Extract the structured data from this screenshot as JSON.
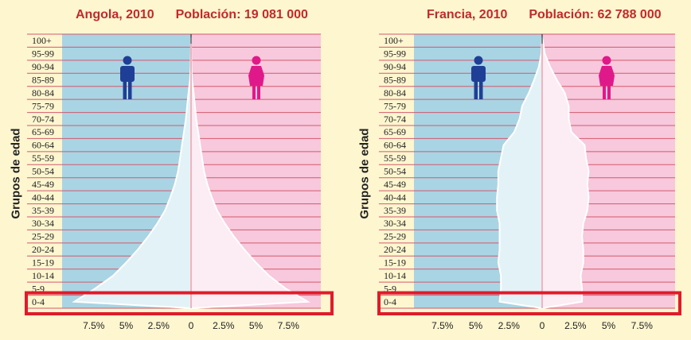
{
  "colors": {
    "male_bg": "#a9d4e3",
    "female_bg": "#f8c8dc",
    "band_line": "#d25a6f",
    "highlight": "#e01b2a",
    "male_icon": "#1f3f96",
    "female_icon": "#e0198a",
    "title": "#c22a2a"
  },
  "chart_data": [
    {
      "type": "population-pyramid",
      "title": "Angola, 2010",
      "population_label": "Población: 19 081 000",
      "ylabel": "Grupos de edad",
      "age_groups": [
        "0-4",
        "5-9",
        "10-14",
        "15-19",
        "20-24",
        "25-29",
        "30-34",
        "35-39",
        "40-44",
        "45-49",
        "50-54",
        "55-59",
        "60-64",
        "65-69",
        "70-74",
        "75-79",
        "80-84",
        "85-89",
        "90-94",
        "95-99",
        "100+"
      ],
      "x_ticks": [
        "7.5%",
        "5%",
        "2.5%",
        "0",
        "2.5%",
        "5%",
        "7.5%"
      ],
      "xlim": [
        -10,
        10
      ],
      "series": [
        {
          "name": "Hombres",
          "values": [
            9.0,
            7.4,
            6.0,
            5.0,
            4.1,
            3.3,
            2.6,
            2.0,
            1.6,
            1.25,
            1.0,
            0.85,
            0.7,
            0.55,
            0.4,
            0.3,
            0.2,
            0.08,
            0.03,
            0.01,
            0.0
          ]
        },
        {
          "name": "Mujeres",
          "values": [
            9.0,
            7.3,
            6.0,
            5.0,
            4.1,
            3.3,
            2.6,
            2.0,
            1.6,
            1.25,
            1.0,
            0.85,
            0.7,
            0.55,
            0.4,
            0.3,
            0.2,
            0.08,
            0.03,
            0.01,
            0.0
          ]
        }
      ],
      "highlighted_group": "0-4",
      "icons": [
        "male-icon",
        "female-icon"
      ]
    },
    {
      "type": "population-pyramid",
      "title": "Francia, 2010",
      "population_label": "Población: 62 788 000",
      "ylabel": "Grupos de edad",
      "age_groups": [
        "0-4",
        "5-9",
        "10-14",
        "15-19",
        "20-24",
        "25-29",
        "30-34",
        "35-39",
        "40-44",
        "45-49",
        "50-54",
        "55-59",
        "60-64",
        "65-69",
        "70-74",
        "75-79",
        "80-84",
        "85-89",
        "90-94",
        "95-99",
        "100+"
      ],
      "x_ticks": [
        "7.5%",
        "5%",
        "2.5%",
        "0",
        "2.5%",
        "5%",
        "7.5%"
      ],
      "xlim": [
        -10,
        10
      ],
      "series": [
        {
          "name": "Hombres",
          "values": [
            3.2,
            3.1,
            3.1,
            3.3,
            3.2,
            3.2,
            3.2,
            3.4,
            3.4,
            3.3,
            3.3,
            3.1,
            2.9,
            2.1,
            1.7,
            1.5,
            1.0,
            0.6,
            0.25,
            0.06,
            0.01
          ]
        },
        {
          "name": "Mujeres",
          "values": [
            3.0,
            3.0,
            2.9,
            3.1,
            3.1,
            3.0,
            3.1,
            3.4,
            3.5,
            3.4,
            3.5,
            3.3,
            3.2,
            2.2,
            2.0,
            2.0,
            1.7,
            1.1,
            0.6,
            0.2,
            0.05
          ]
        }
      ],
      "highlighted_group": "0-4",
      "icons": [
        "male-icon",
        "female-icon"
      ]
    }
  ]
}
